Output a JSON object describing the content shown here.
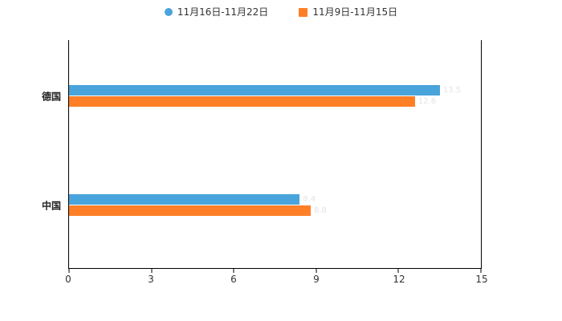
{
  "chart_data": {
    "type": "bar",
    "orientation": "horizontal",
    "title": "",
    "categories": [
      "德国",
      "中国"
    ],
    "series": [
      {
        "name": "11月16日-11月22日",
        "color": "#4aa4dc",
        "marker": "circle",
        "values": [
          13.5,
          8.4
        ]
      },
      {
        "name": "11月9日-11月15日",
        "color": "#ff7f27",
        "marker": "square",
        "values": [
          12.6,
          8.8
        ]
      }
    ],
    "xticks": [
      0,
      3,
      6,
      9,
      12,
      15
    ],
    "xlim": [
      0,
      15
    ],
    "xlabel": "",
    "ylabel": "",
    "grid": false,
    "legend_position": "top",
    "axis_color": "#000000",
    "background_color": "#ffffff",
    "value_label_color": "#e4e4e4"
  }
}
